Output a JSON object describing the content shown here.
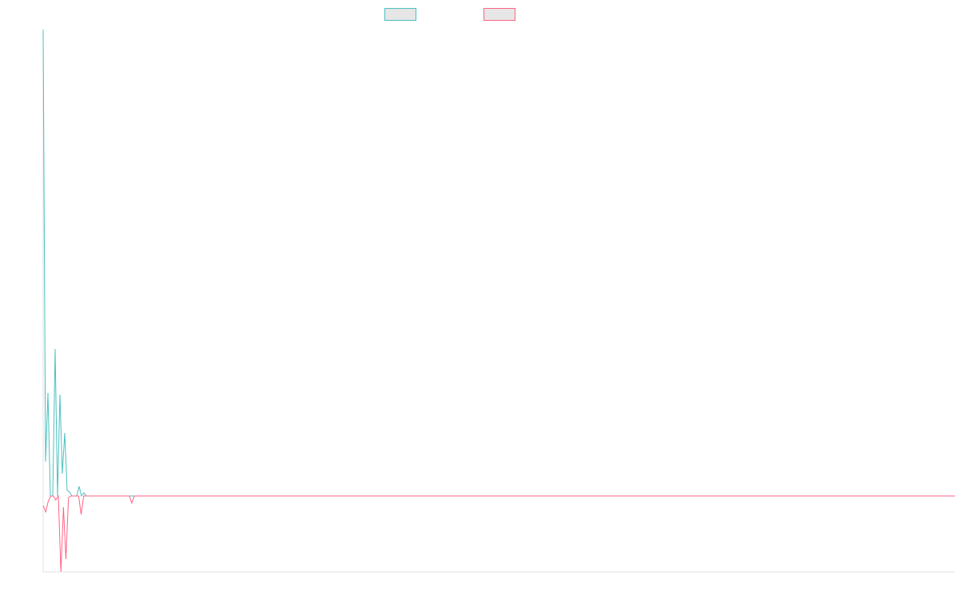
{
  "chart_data": {
    "type": "line",
    "title": "",
    "xlabel": "",
    "ylabel": "",
    "ylim": [
      -95,
      584
    ],
    "grid": false,
    "legend": "top",
    "series": [
      {
        "color": "#4bc0c0",
        "legend_fill": "#e6e6e6",
        "values": [
          584,
          43,
          129,
          0,
          0,
          184,
          0,
          127,
          28,
          79,
          7,
          5,
          0,
          0,
          0,
          12,
          0,
          4,
          0,
          0,
          0,
          0,
          0,
          0,
          0,
          0,
          0,
          0,
          0,
          0,
          0,
          0,
          0,
          0,
          0,
          0,
          0,
          0,
          0,
          0,
          0,
          0,
          0,
          0,
          0,
          0,
          0,
          0,
          0,
          0,
          0,
          0,
          0,
          0,
          0,
          0,
          0,
          0,
          0,
          0,
          0,
          0,
          0,
          0,
          0,
          0,
          0,
          0,
          0,
          0,
          0,
          0,
          0,
          0,
          0,
          0,
          0,
          0,
          0,
          0,
          0,
          0,
          0,
          0,
          0,
          0,
          0,
          0,
          0,
          0,
          0,
          0,
          0,
          0,
          0,
          0,
          0,
          0,
          0,
          0,
          0,
          0,
          0,
          0,
          0,
          0,
          0,
          0,
          0,
          0,
          0,
          0,
          0,
          0,
          0,
          0,
          0,
          0,
          0,
          0,
          0,
          0,
          0,
          0,
          0,
          0,
          0,
          0,
          0,
          0,
          0,
          0,
          0,
          0,
          0,
          0,
          0,
          0,
          0,
          0,
          0,
          0,
          0,
          0,
          0,
          0,
          0,
          0,
          0,
          0,
          0,
          0,
          0,
          0,
          0,
          0,
          0,
          0,
          0,
          0,
          0,
          0,
          0,
          0,
          0,
          0,
          0,
          0,
          0,
          0,
          0,
          0,
          0,
          0,
          0,
          0,
          0,
          0,
          0,
          0,
          0,
          0,
          0,
          0,
          0,
          0,
          0,
          0,
          0,
          0,
          0,
          0,
          0,
          0,
          0,
          0,
          0,
          0,
          0,
          0,
          0,
          0,
          0,
          0,
          0,
          0,
          0,
          0,
          0,
          0,
          0,
          0,
          0,
          0,
          0,
          0,
          0,
          0,
          0,
          0,
          0,
          0,
          0,
          0,
          0,
          0,
          0,
          0,
          0,
          0,
          0,
          0,
          0,
          0,
          0,
          0,
          0,
          0,
          0,
          0,
          0,
          0,
          0,
          0,
          0,
          0,
          0,
          0,
          0,
          0,
          0,
          0,
          0,
          0,
          0,
          0,
          0,
          0,
          0,
          0,
          0,
          0,
          0,
          0,
          0,
          0,
          0,
          0,
          0,
          0,
          0,
          0,
          0,
          0,
          0,
          0,
          0,
          0,
          0,
          0,
          0,
          0,
          0,
          0,
          0,
          0,
          0,
          0,
          0,
          0,
          0,
          0,
          0,
          0,
          0,
          0,
          0,
          0,
          0,
          0,
          0,
          0,
          0,
          0,
          0,
          0,
          0,
          0,
          0,
          0,
          0,
          0,
          0,
          0,
          0,
          0,
          0,
          0,
          0,
          0,
          0,
          0,
          0,
          0,
          0,
          0,
          0,
          0,
          0,
          0,
          0,
          0,
          0,
          0,
          0,
          0,
          0,
          0,
          0,
          0,
          0,
          0,
          0,
          0,
          0,
          0,
          0,
          0,
          0,
          0,
          0,
          0,
          0,
          0,
          0,
          0,
          0,
          0,
          0,
          0,
          0,
          0,
          0,
          0,
          0,
          0,
          0,
          0,
          0,
          0,
          0,
          0,
          0,
          0,
          0,
          0,
          0,
          0,
          0,
          0,
          0
        ]
      },
      {
        "color": "#ff6384",
        "legend_fill": "#e6e6e6",
        "values": [
          -12,
          -20,
          -7,
          0,
          0,
          -5,
          0,
          -95,
          -14,
          -79,
          -2,
          0,
          0,
          0,
          0,
          -23,
          0,
          0,
          0,
          0,
          0,
          0,
          0,
          0,
          0,
          0,
          0,
          0,
          0,
          0,
          0,
          0,
          0,
          0,
          0,
          -9,
          0,
          0,
          0,
          0,
          0,
          0,
          0,
          0,
          0,
          0,
          0,
          0,
          0,
          0,
          0,
          0,
          0,
          0,
          0,
          0,
          0,
          0,
          0,
          0,
          0,
          0,
          0,
          0,
          0,
          0,
          0,
          0,
          0,
          0,
          0,
          0,
          0,
          0,
          0,
          0,
          0,
          0,
          0,
          0,
          0,
          0,
          0,
          0,
          0,
          0,
          0,
          0,
          0,
          0,
          0,
          0,
          0,
          0,
          0,
          0,
          0,
          0,
          0,
          0,
          0,
          0,
          0,
          0,
          0,
          0,
          0,
          0,
          0,
          0,
          0,
          0,
          0,
          0,
          0,
          0,
          0,
          0,
          0,
          0,
          0,
          0,
          0,
          0,
          0,
          0,
          0,
          0,
          0,
          0,
          0,
          0,
          0,
          0,
          0,
          0,
          0,
          0,
          0,
          0,
          0,
          0,
          0,
          0,
          0,
          0,
          0,
          0,
          0,
          0,
          0,
          0,
          0,
          0,
          0,
          0,
          0,
          0,
          0,
          0,
          0,
          0,
          0,
          0,
          0,
          0,
          0,
          0,
          0,
          0,
          0,
          0,
          0,
          0,
          0,
          0,
          0,
          0,
          0,
          0,
          0,
          0,
          0,
          0,
          0,
          0,
          0,
          0,
          0,
          0,
          0,
          0,
          0,
          0,
          0,
          0,
          0,
          0,
          0,
          0,
          0,
          0,
          0,
          0,
          0,
          0,
          0,
          0,
          0,
          0,
          0,
          0,
          0,
          0,
          0,
          0,
          0,
          0,
          0,
          0,
          0,
          0,
          0,
          0,
          0,
          0,
          0,
          0,
          0,
          0,
          0,
          0,
          0,
          0,
          0,
          0,
          0,
          0,
          0,
          0,
          0,
          0,
          0,
          0,
          0,
          0,
          0,
          0,
          0,
          0,
          0,
          0,
          0,
          0,
          0,
          0,
          0,
          0,
          0,
          0,
          0,
          0,
          0,
          0,
          0,
          0,
          0,
          0,
          0,
          0,
          0,
          0,
          0,
          0,
          0,
          0,
          0,
          0,
          0,
          0,
          0,
          0,
          0,
          0,
          0,
          0,
          0,
          0,
          0,
          0,
          0,
          0,
          0,
          0,
          0,
          0,
          0,
          0,
          0,
          0,
          0,
          0,
          0,
          0,
          0,
          0,
          0,
          0,
          0,
          0,
          0,
          0,
          0,
          0,
          0,
          0,
          0,
          0,
          0,
          0,
          0,
          0,
          0,
          0,
          0,
          0,
          0,
          0,
          0,
          0,
          0,
          0,
          0,
          0,
          0,
          0,
          0,
          0,
          0,
          0,
          0,
          0,
          0,
          0,
          0,
          0,
          0,
          0,
          0,
          0,
          0,
          0,
          0,
          0,
          0,
          0,
          0,
          0,
          0,
          0,
          0
        ]
      }
    ]
  }
}
